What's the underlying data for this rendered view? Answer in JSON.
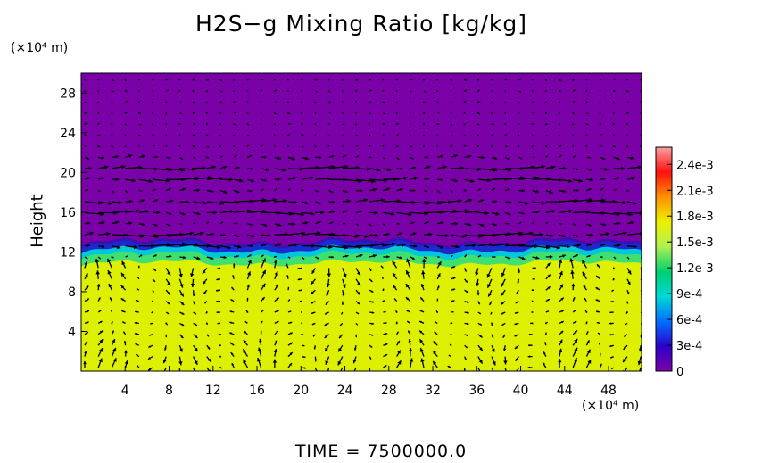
{
  "chart_data": {
    "type": "heatmap",
    "title": "H2S−g Mixing Ratio [kg/kg]",
    "ylabel": "Height",
    "x_unit": "(×10⁴ m)",
    "y_unit": "(×10⁴ m)",
    "xlim": [
      0,
      51
    ],
    "ylim": [
      0,
      30
    ],
    "x_ticks": [
      4,
      8,
      12,
      16,
      20,
      24,
      28,
      32,
      36,
      40,
      44,
      48
    ],
    "y_ticks": [
      4,
      8,
      12,
      16,
      20,
      24,
      28
    ],
    "colorbar": {
      "min": 0,
      "max": 0.0026,
      "ticks": [
        {
          "value": 0,
          "label": "0"
        },
        {
          "value": 0.0003,
          "label": "3e-4"
        },
        {
          "value": 0.0006,
          "label": "6e-4"
        },
        {
          "value": 0.0009,
          "label": "9e-4"
        },
        {
          "value": 0.0012,
          "label": "1.2e-3"
        },
        {
          "value": 0.0015,
          "label": "1.5e-3"
        },
        {
          "value": 0.0018,
          "label": "1.8e-3"
        },
        {
          "value": 0.0021,
          "label": "2.1e-3"
        },
        {
          "value": 0.0024,
          "label": "2.4e-3"
        }
      ],
      "colors": [
        "#7c00a8",
        "#2b00cc",
        "#0070ff",
        "#00d8d8",
        "#00d070",
        "#b0f050",
        "#eef000",
        "#ff9000",
        "#ff1010",
        "#f8a0a0"
      ]
    },
    "layer_top_height": 12.5,
    "lower_value": 0.0017,
    "upper_value": 0,
    "transition_values": [
      0.0002,
      0.0006,
      0.001,
      0.0014
    ],
    "wind_vectors": "vector field overlay (arrows)"
  },
  "footer": {
    "time_label": "TIME  =  7500000.0"
  },
  "colors": {
    "upper": "#7a00a8",
    "lower": "#dcf000",
    "band_blue": "#1a2ad0",
    "band_cyan": "#00c8d8",
    "band_green": "#40e070"
  }
}
